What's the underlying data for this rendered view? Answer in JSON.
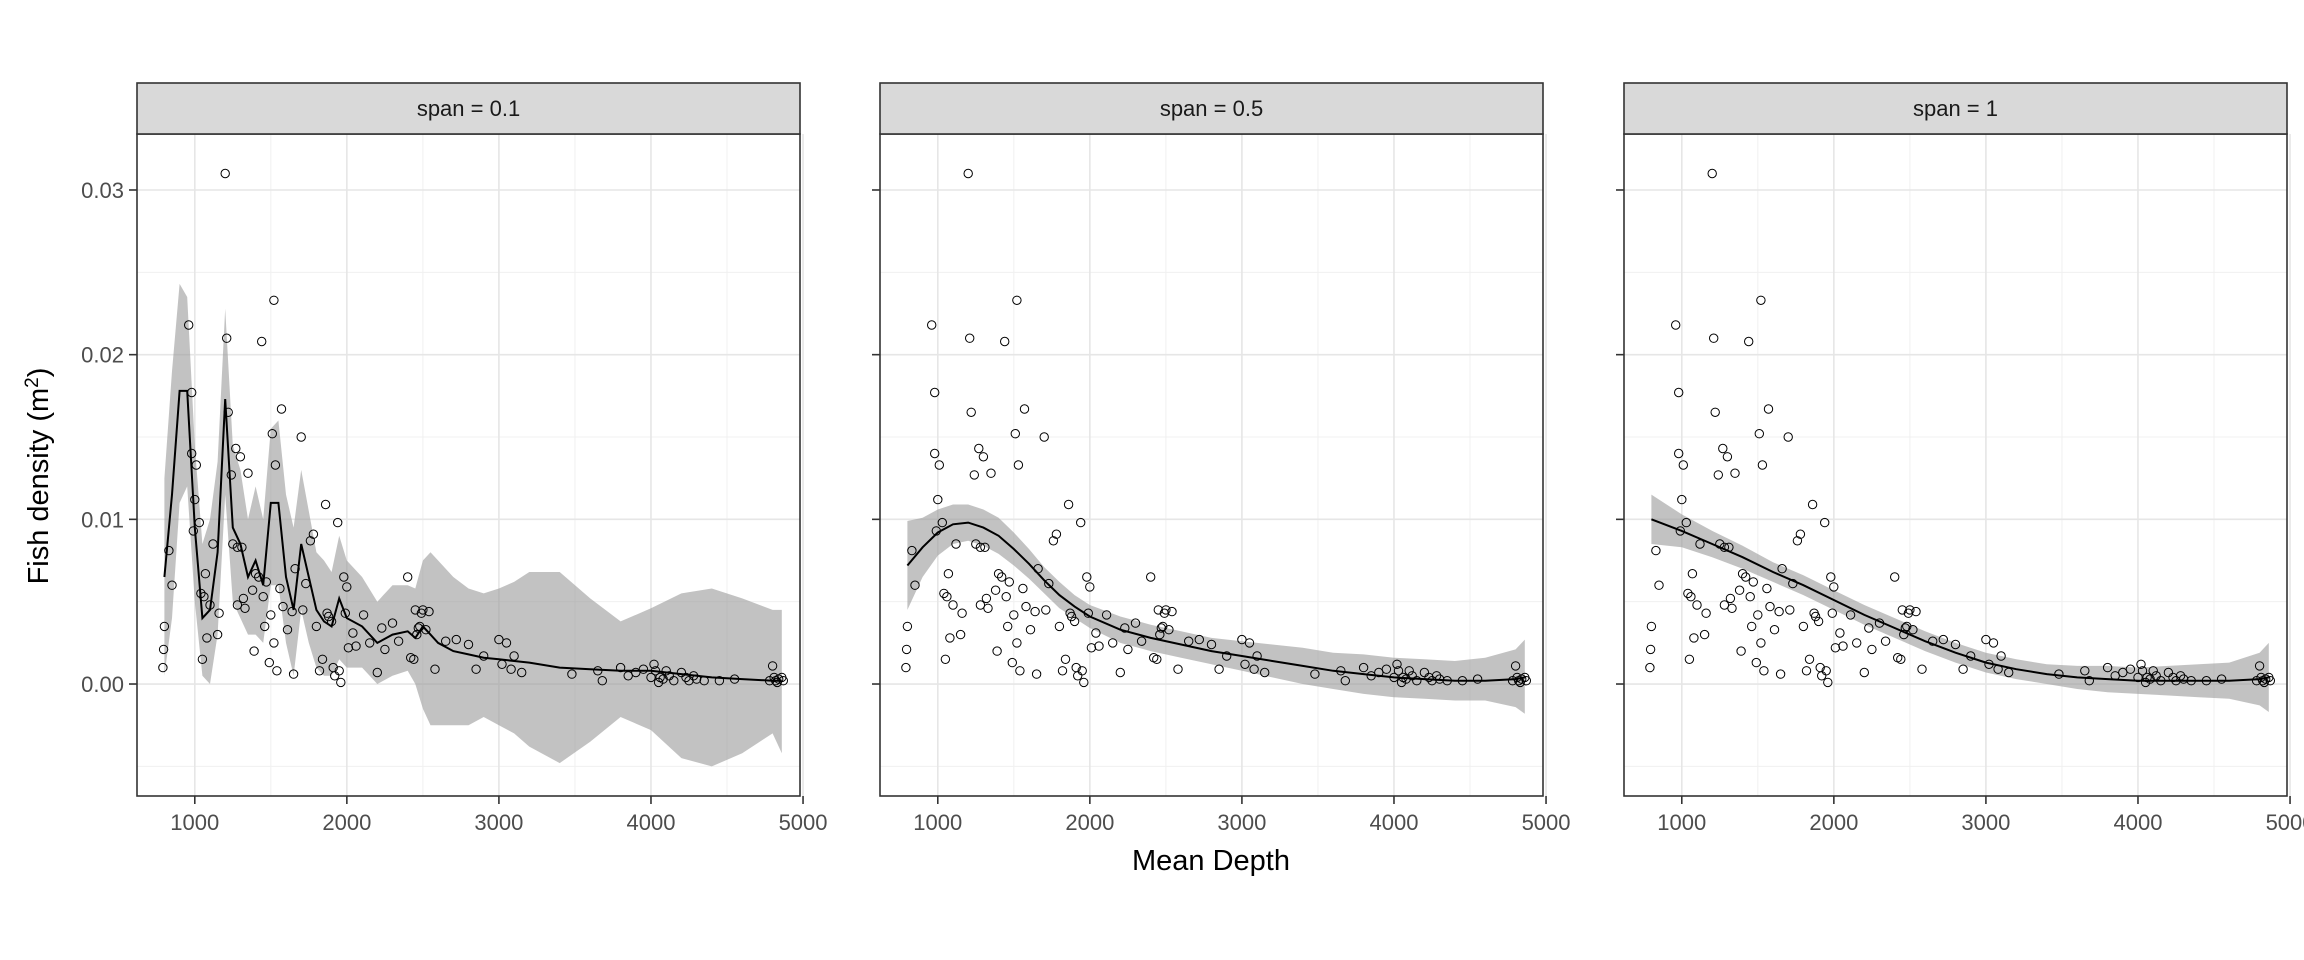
{
  "chart_data": {
    "type": "scatter",
    "xlabel": "Mean Depth",
    "ylabel_main": "Fish density (m",
    "ylabel_sup": "2",
    "ylabel_close": ")",
    "xlim": [
      620,
      4980
    ],
    "ylim": [
      -0.0068,
      0.0334
    ],
    "x_ticks": [
      1000,
      2000,
      3000,
      4000,
      5000
    ],
    "x_tick_labels": [
      "1000",
      "2000",
      "3000",
      "4000",
      "5000"
    ],
    "y_ticks": [
      0.0,
      0.01,
      0.02,
      0.03
    ],
    "y_tick_labels": [
      "0.00",
      "0.01",
      "0.02",
      "0.03"
    ],
    "grid": true,
    "facets": [
      {
        "strip": "span = 0.1",
        "fit_x": [
          800,
          850,
          900,
          950,
          1000,
          1050,
          1100,
          1150,
          1200,
          1250,
          1300,
          1350,
          1400,
          1450,
          1500,
          1550,
          1600,
          1650,
          1700,
          1750,
          1800,
          1850,
          1900,
          1950,
          2000,
          2100,
          2200,
          2300,
          2400,
          2450,
          2500,
          2550,
          2600,
          2700,
          2800,
          2900,
          3000,
          3100,
          3200,
          3400,
          3600,
          3800,
          4000,
          4200,
          4400,
          4600,
          4800,
          4860
        ],
        "fit_y": [
          0.0065,
          0.0115,
          0.0178,
          0.0178,
          0.0095,
          0.004,
          0.0045,
          0.008,
          0.0173,
          0.0095,
          0.0085,
          0.0065,
          0.0075,
          0.006,
          0.011,
          0.011,
          0.0065,
          0.0045,
          0.0085,
          0.0065,
          0.0045,
          0.0038,
          0.0035,
          0.0052,
          0.004,
          0.0035,
          0.0025,
          0.003,
          0.0032,
          0.0028,
          0.0035,
          0.003,
          0.0025,
          0.002,
          0.0018,
          0.0016,
          0.0015,
          0.0014,
          0.0013,
          0.001,
          0.0009,
          0.0008,
          0.0008,
          0.0006,
          0.0004,
          0.0003,
          0.0002,
          0.0002
        ],
        "band_lower": [
          0.0005,
          0.004,
          0.011,
          0.012,
          0.005,
          0.0005,
          0.0,
          0.003,
          0.0115,
          0.005,
          0.004,
          0.003,
          0.003,
          0.0025,
          0.006,
          0.006,
          0.0025,
          0.0005,
          0.0045,
          0.0025,
          0.001,
          0.0005,
          0.0005,
          0.0015,
          0.001,
          0.001,
          0.0,
          0.0005,
          0.0008,
          0.0,
          -0.0015,
          -0.0025,
          -0.0025,
          -0.0025,
          -0.0025,
          -0.002,
          -0.0025,
          -0.003,
          -0.0038,
          -0.0048,
          -0.0035,
          -0.002,
          -0.0028,
          -0.0045,
          -0.005,
          -0.0042,
          -0.003,
          -0.0042
        ],
        "band_upper": [
          0.0125,
          0.019,
          0.0243,
          0.0235,
          0.0145,
          0.0085,
          0.01,
          0.0135,
          0.0228,
          0.0145,
          0.013,
          0.01,
          0.012,
          0.01,
          0.0155,
          0.016,
          0.0115,
          0.0095,
          0.013,
          0.0105,
          0.008,
          0.0075,
          0.0068,
          0.009,
          0.0075,
          0.0065,
          0.005,
          0.006,
          0.006,
          0.0058,
          0.0075,
          0.008,
          0.0075,
          0.0065,
          0.0058,
          0.0055,
          0.0058,
          0.0062,
          0.0068,
          0.0068,
          0.0052,
          0.0038,
          0.0046,
          0.0055,
          0.0058,
          0.0052,
          0.0045,
          0.0045
        ]
      },
      {
        "strip": "span = 0.5",
        "fit_x": [
          800,
          900,
          1000,
          1100,
          1200,
          1300,
          1400,
          1500,
          1600,
          1700,
          1800,
          1900,
          2000,
          2200,
          2400,
          2600,
          2800,
          3000,
          3200,
          3400,
          3600,
          3800,
          4000,
          4200,
          4400,
          4600,
          4800,
          4860
        ],
        "fit_y": [
          0.0072,
          0.0083,
          0.0092,
          0.0097,
          0.0098,
          0.0095,
          0.009,
          0.0082,
          0.0073,
          0.0063,
          0.0054,
          0.0047,
          0.0041,
          0.0033,
          0.0028,
          0.0024,
          0.002,
          0.0017,
          0.0014,
          0.0011,
          0.0008,
          0.0006,
          0.0004,
          0.0003,
          0.0002,
          0.0002,
          0.0003,
          0.0004
        ],
        "band_lower": [
          0.0045,
          0.0065,
          0.0078,
          0.0085,
          0.0087,
          0.0084,
          0.0079,
          0.0072,
          0.0064,
          0.0055,
          0.0046,
          0.004,
          0.0034,
          0.0025,
          0.002,
          0.0016,
          0.0012,
          0.0008,
          0.0004,
          0.0,
          -0.0003,
          -0.0006,
          -0.0008,
          -0.0009,
          -0.001,
          -0.001,
          -0.0014,
          -0.0018
        ],
        "band_upper": [
          0.0099,
          0.0101,
          0.0106,
          0.0109,
          0.0109,
          0.0106,
          0.0101,
          0.0092,
          0.0082,
          0.0071,
          0.0062,
          0.0054,
          0.0048,
          0.0041,
          0.0036,
          0.0032,
          0.0028,
          0.0026,
          0.0024,
          0.0022,
          0.0019,
          0.0018,
          0.0016,
          0.0015,
          0.0014,
          0.0016,
          0.0021,
          0.0027
        ]
      },
      {
        "strip": "span = 1",
        "fit_x": [
          800,
          1000,
          1200,
          1400,
          1600,
          1800,
          2000,
          2200,
          2400,
          2600,
          2800,
          3000,
          3200,
          3400,
          3600,
          3800,
          4000,
          4200,
          4400,
          4600,
          4800,
          4860
        ],
        "fit_y": [
          0.01,
          0.0093,
          0.0085,
          0.0077,
          0.0068,
          0.006,
          0.0051,
          0.0042,
          0.0034,
          0.0026,
          0.0019,
          0.0013,
          0.0009,
          0.0006,
          0.0004,
          0.0003,
          0.0002,
          0.0002,
          0.0002,
          0.0002,
          0.0003,
          0.0004
        ],
        "band_lower": [
          0.0085,
          0.0083,
          0.0077,
          0.007,
          0.0062,
          0.0054,
          0.0045,
          0.0036,
          0.0028,
          0.002,
          0.0013,
          0.0007,
          0.0003,
          0.0,
          -0.0003,
          -0.0005,
          -0.0006,
          -0.0007,
          -0.0008,
          -0.0009,
          -0.0013,
          -0.0017
        ],
        "band_upper": [
          0.0115,
          0.0103,
          0.0093,
          0.0084,
          0.0074,
          0.0066,
          0.0057,
          0.0048,
          0.004,
          0.0032,
          0.0025,
          0.0019,
          0.0015,
          0.0012,
          0.0011,
          0.0011,
          0.001,
          0.0011,
          0.0012,
          0.0013,
          0.0019,
          0.0025
        ]
      }
    ],
    "points": [
      [
        790,
        0.001
      ],
      [
        795,
        0.0021
      ],
      [
        800,
        0.0035
      ],
      [
        830,
        0.0081
      ],
      [
        850,
        0.006
      ],
      [
        960,
        0.0218
      ],
      [
        980,
        0.0177
      ],
      [
        980,
        0.014
      ],
      [
        990,
        0.0093
      ],
      [
        1000,
        0.0112
      ],
      [
        1010,
        0.0133
      ],
      [
        1030,
        0.0098
      ],
      [
        1040,
        0.0055
      ],
      [
        1050,
        0.0015
      ],
      [
        1060,
        0.0053
      ],
      [
        1070,
        0.0067
      ],
      [
        1080,
        0.0028
      ],
      [
        1100,
        0.0048
      ],
      [
        1120,
        0.0085
      ],
      [
        1150,
        0.003
      ],
      [
        1160,
        0.0043
      ],
      [
        1200,
        0.031
      ],
      [
        1210,
        0.021
      ],
      [
        1220,
        0.0165
      ],
      [
        1240,
        0.0127
      ],
      [
        1250,
        0.0085
      ],
      [
        1270,
        0.0143
      ],
      [
        1280,
        0.0083
      ],
      [
        1280,
        0.0048
      ],
      [
        1300,
        0.0138
      ],
      [
        1310,
        0.0083
      ],
      [
        1320,
        0.0052
      ],
      [
        1330,
        0.0046
      ],
      [
        1350,
        0.0128
      ],
      [
        1380,
        0.0057
      ],
      [
        1390,
        0.002
      ],
      [
        1400,
        0.0067
      ],
      [
        1420,
        0.0065
      ],
      [
        1440,
        0.0208
      ],
      [
        1450,
        0.0053
      ],
      [
        1460,
        0.0035
      ],
      [
        1470,
        0.0062
      ],
      [
        1490,
        0.0013
      ],
      [
        1500,
        0.0042
      ],
      [
        1510,
        0.0152
      ],
      [
        1520,
        0.0233
      ],
      [
        1520,
        0.0025
      ],
      [
        1530,
        0.0133
      ],
      [
        1540,
        0.0008
      ],
      [
        1560,
        0.0058
      ],
      [
        1570,
        0.0167
      ],
      [
        1580,
        0.0047
      ],
      [
        1610,
        0.0033
      ],
      [
        1640,
        0.0044
      ],
      [
        1650,
        0.0006
      ],
      [
        1660,
        0.007
      ],
      [
        1700,
        0.015
      ],
      [
        1710,
        0.0045
      ],
      [
        1730,
        0.0061
      ],
      [
        1760,
        0.0087
      ],
      [
        1780,
        0.0091
      ],
      [
        1800,
        0.0035
      ],
      [
        1820,
        0.0008
      ],
      [
        1840,
        0.0015
      ],
      [
        1860,
        0.0109
      ],
      [
        1870,
        0.0043
      ],
      [
        1880,
        0.0041
      ],
      [
        1900,
        0.0038
      ],
      [
        1910,
        0.001
      ],
      [
        1920,
        0.0005
      ],
      [
        1940,
        0.0098
      ],
      [
        1950,
        0.0008
      ],
      [
        1960,
        0.0001
      ],
      [
        1980,
        0.0065
      ],
      [
        1990,
        0.0043
      ],
      [
        2000,
        0.0059
      ],
      [
        2010,
        0.0022
      ],
      [
        2040,
        0.0031
      ],
      [
        2060,
        0.0023
      ],
      [
        2110,
        0.0042
      ],
      [
        2150,
        0.0025
      ],
      [
        2200,
        0.0007
      ],
      [
        2230,
        0.0034
      ],
      [
        2250,
        0.0021
      ],
      [
        2300,
        0.0037
      ],
      [
        2340,
        0.0026
      ],
      [
        2400,
        0.0065
      ],
      [
        2420,
        0.0016
      ],
      [
        2440,
        0.0015
      ],
      [
        2450,
        0.0045
      ],
      [
        2460,
        0.003
      ],
      [
        2470,
        0.0034
      ],
      [
        2480,
        0.0035
      ],
      [
        2490,
        0.0043
      ],
      [
        2500,
        0.0045
      ],
      [
        2520,
        0.0033
      ],
      [
        2540,
        0.0044
      ],
      [
        2580,
        0.0009
      ],
      [
        2650,
        0.0026
      ],
      [
        2720,
        0.0027
      ],
      [
        2800,
        0.0024
      ],
      [
        2850,
        0.0009
      ],
      [
        2900,
        0.0017
      ],
      [
        3000,
        0.0027
      ],
      [
        3020,
        0.0012
      ],
      [
        3050,
        0.0025
      ],
      [
        3080,
        0.0009
      ],
      [
        3100,
        0.0017
      ],
      [
        3150,
        0.0007
      ],
      [
        3480,
        0.0006
      ],
      [
        3650,
        0.0008
      ],
      [
        3680,
        0.0002
      ],
      [
        3800,
        0.001
      ],
      [
        3850,
        0.0005
      ],
      [
        3900,
        0.0007
      ],
      [
        3950,
        0.0009
      ],
      [
        4000,
        0.0004
      ],
      [
        4020,
        0.0012
      ],
      [
        4030,
        0.0008
      ],
      [
        4050,
        0.0001
      ],
      [
        4060,
        0.0004
      ],
      [
        4080,
        0.0003
      ],
      [
        4100,
        0.0008
      ],
      [
        4120,
        0.0005
      ],
      [
        4150,
        0.0002
      ],
      [
        4200,
        0.0007
      ],
      [
        4230,
        0.0004
      ],
      [
        4250,
        0.0002
      ],
      [
        4280,
        0.0005
      ],
      [
        4300,
        0.0003
      ],
      [
        4350,
        0.0002
      ],
      [
        4450,
        0.0002
      ],
      [
        4550,
        0.0003
      ],
      [
        4780,
        0.0002
      ],
      [
        4800,
        0.0011
      ],
      [
        4810,
        0.0004
      ],
      [
        4820,
        0.0002
      ],
      [
        4830,
        0.0001
      ],
      [
        4840,
        0.0003
      ],
      [
        4860,
        0.0004
      ],
      [
        4870,
        0.0002
      ]
    ]
  }
}
